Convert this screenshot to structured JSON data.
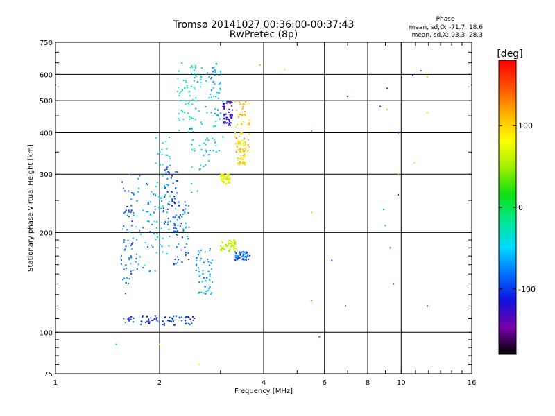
{
  "chart_data": {
    "type": "scatter",
    "title": "Tromsø 20141027 00:36:00-00:37:43",
    "subtitle": "RwPretec (8p)",
    "xlabel": "Frequency [MHz]",
    "ylabel": "Stationary phase Virtual Height [km]",
    "x_scale": "log",
    "y_scale": "log",
    "xlim": [
      1,
      16
    ],
    "ylim": [
      75,
      750
    ],
    "x_ticks": [
      1,
      2,
      4,
      6,
      8,
      10,
      16
    ],
    "x_tick_labels": [
      "1",
      "2",
      "4",
      "6",
      "8",
      "10",
      "16"
    ],
    "y_ticks": [
      75,
      100,
      200,
      300,
      400,
      500,
      600,
      750
    ],
    "y_tick_labels": [
      "75",
      "100",
      "200",
      "300",
      "400",
      "500",
      "600",
      "750"
    ],
    "grid": true,
    "phase_stats": {
      "title": "Phase",
      "line1": "mean, sd,O: -71.7, 18.6",
      "line2": "mean, sd,X:  93.3, 28.3"
    },
    "colorbar": {
      "label": "[deg]",
      "min": -180,
      "max": 180,
      "ticks": [
        100,
        0,
        -100
      ],
      "tick_labels": [
        "100",
        "0",
        "-100"
      ],
      "colormap": [
        "#000000",
        "#7a00a8",
        "#1010e0",
        "#0070ff",
        "#00d8ff",
        "#00e890",
        "#10e010",
        "#a0f000",
        "#ffff00",
        "#ffb000",
        "#ff5000",
        "#ff0000"
      ]
    },
    "series": [
      {
        "clusters": [
          {
            "f": [
              1.55,
              1.68
            ],
            "h": [
              130,
              300
            ],
            "phase": -85
          },
          {
            "f": [
              1.65,
              1.95
            ],
            "h": [
              150,
              300
            ],
            "phase": -70
          },
          {
            "f": [
              1.95,
              2.15
            ],
            "h": [
              170,
              400
            ],
            "phase": -40
          },
          {
            "f": [
              2.05,
              2.25
            ],
            "h": [
              200,
              320
            ],
            "phase": -95
          },
          {
            "f": [
              2.2,
              2.45
            ],
            "h": [
              160,
              260
            ],
            "phase": -80
          },
          {
            "f": [
              2.25,
              2.55
            ],
            "h": [
              400,
              650
            ],
            "phase": -30
          },
          {
            "f": [
              2.45,
              2.8
            ],
            "h": [
              250,
              650
            ],
            "phase": -45
          },
          {
            "f": [
              2.55,
              2.85
            ],
            "h": [
              130,
              180
            ],
            "phase": -65
          },
          {
            "f": [
              2.8,
              3.05
            ],
            "h": [
              350,
              650
            ],
            "phase": -60
          },
          {
            "f": [
              3.05,
              3.25
            ],
            "h": [
              420,
              500
            ],
            "phase": -120
          },
          {
            "f": [
              3.3,
              3.65
            ],
            "h": [
              350,
              500
            ],
            "phase": 110
          },
          {
            "f": [
              3.0,
              3.35
            ],
            "h": [
              175,
              190
            ],
            "phase": 60
          },
          {
            "f": [
              3.3,
              3.65
            ],
            "h": [
              165,
              175
            ],
            "phase": -90
          },
          {
            "f": [
              3.35,
              3.55
            ],
            "h": [
              320,
              380
            ],
            "phase": 95
          },
          {
            "f": [
              3.0,
              3.2
            ],
            "h": [
              280,
              300
            ],
            "phase": 75
          }
        ],
        "trace_108km": {
          "f": [
            1.55,
            2.55
          ],
          "h": [
            105,
            112
          ],
          "phase": -100
        },
        "scattered_points": [
          {
            "f": 1.5,
            "h": 92,
            "phase": -40
          },
          {
            "f": 2.0,
            "h": 92,
            "phase": 95
          },
          {
            "f": 2.6,
            "h": 80,
            "phase": 85
          },
          {
            "f": 3.9,
            "h": 640,
            "phase": 115
          },
          {
            "f": 4.6,
            "h": 620,
            "phase": 95
          },
          {
            "f": 5.5,
            "h": 405,
            "phase": 150
          },
          {
            "f": 5.5,
            "h": 230,
            "phase": 120
          },
          {
            "f": 5.5,
            "h": 125,
            "phase": 150
          },
          {
            "f": 5.8,
            "h": 97,
            "phase": -90
          },
          {
            "f": 6.3,
            "h": 165,
            "phase": -90
          },
          {
            "f": 7.0,
            "h": 515,
            "phase": 170
          },
          {
            "f": 6.9,
            "h": 120,
            "phase": -90
          },
          {
            "f": 8.7,
            "h": 480,
            "phase": -100
          },
          {
            "f": 9.1,
            "h": 545,
            "phase": -90
          },
          {
            "f": 9.1,
            "h": 470,
            "phase": 110
          },
          {
            "f": 9.3,
            "h": 180,
            "phase": 150
          },
          {
            "f": 9.5,
            "h": 140,
            "phase": -90
          },
          {
            "f": 9.8,
            "h": 400,
            "phase": -100
          },
          {
            "f": 9.8,
            "h": 300,
            "phase": 110
          },
          {
            "f": 9.8,
            "h": 260,
            "phase": -110
          },
          {
            "f": 10.8,
            "h": 595,
            "phase": -100
          },
          {
            "f": 11.4,
            "h": 615,
            "phase": -100
          },
          {
            "f": 11.9,
            "h": 590,
            "phase": 110
          },
          {
            "f": 11.9,
            "h": 460,
            "phase": 95
          },
          {
            "f": 11.9,
            "h": 120,
            "phase": -90
          },
          {
            "f": 10.9,
            "h": 325,
            "phase": 95
          },
          {
            "f": 8.9,
            "h": 235,
            "phase": -60
          },
          {
            "f": 9.0,
            "h": 210,
            "phase": -60
          }
        ]
      }
    ]
  }
}
